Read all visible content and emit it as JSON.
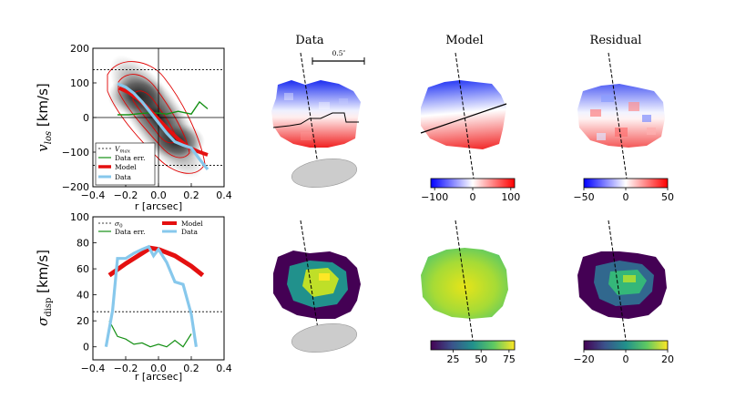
{
  "titles": {
    "data": "Data",
    "model": "Model",
    "residual": "Residual"
  },
  "scale_bar": "0.5″",
  "chart_data": [
    {
      "type": "line",
      "xlabel": "r [arcsec]",
      "ylabel_main": "v",
      "ylabel_sub": "los",
      "ylabel_unit": " [km/s]",
      "xlim": [
        -0.4,
        0.4
      ],
      "ylim": [
        -200,
        200
      ],
      "xticks": [
        "−0.4",
        "−0.2",
        "0.0",
        "0.2",
        "0.4"
      ],
      "yticks": [
        "−200",
        "−100",
        "0",
        "100",
        "200"
      ],
      "vmax": 138,
      "legend": {
        "vmax": "V",
        "vmax_sub": "max",
        "err": "Data err.",
        "model": "Model",
        "data": "Data"
      },
      "series": [
        {
          "name": "Model",
          "x": [
            -0.24,
            -0.18,
            -0.12,
            -0.06,
            0.0,
            0.06,
            0.12,
            0.18,
            0.24,
            0.3
          ],
          "y": [
            85,
            72,
            52,
            25,
            -5,
            -35,
            -62,
            -85,
            -98,
            -108
          ]
        },
        {
          "name": "Data",
          "x": [
            -0.25,
            -0.2,
            -0.15,
            -0.1,
            -0.05,
            0.0,
            0.05,
            0.1,
            0.15,
            0.2,
            0.25,
            0.3
          ],
          "y": [
            98,
            88,
            70,
            45,
            15,
            -15,
            -45,
            -70,
            -80,
            -88,
            -120,
            -150
          ]
        },
        {
          "name": "Data err.",
          "x": [
            -0.25,
            -0.18,
            -0.1,
            -0.03,
            0.05,
            0.12,
            0.2,
            0.25,
            0.3
          ],
          "y": [
            8,
            8,
            12,
            14,
            10,
            18,
            10,
            45,
            25
          ]
        }
      ]
    },
    {
      "type": "line",
      "xlabel": "r [arcsec]",
      "ylabel_main": "σ",
      "ylabel_sub": "disp",
      "ylabel_unit": " [km/s]",
      "xlim": [
        -0.4,
        0.4
      ],
      "ylim": [
        -10,
        100
      ],
      "xticks": [
        "−0.4",
        "−0.2",
        "0.0",
        "0.2",
        "0.4"
      ],
      "yticks": [
        "0",
        "20",
        "40",
        "60",
        "80",
        "100"
      ],
      "sigma0": 27,
      "legend": {
        "sigma0": "σ",
        "sigma0_sub": "0",
        "err": "Data err.",
        "model": "Model",
        "data": "Data"
      },
      "series": [
        {
          "name": "Model",
          "x": [
            -0.3,
            -0.2,
            -0.1,
            -0.05,
            0.0,
            0.1,
            0.2,
            0.27
          ],
          "y": [
            55,
            64,
            72,
            76,
            75,
            70,
            62,
            55
          ]
        },
        {
          "name": "Data",
          "x": [
            -0.32,
            -0.28,
            -0.25,
            -0.2,
            -0.15,
            -0.1,
            -0.06,
            -0.03,
            0.0,
            0.05,
            0.1,
            0.15,
            0.2,
            0.23
          ],
          "y": [
            0,
            28,
            68,
            68,
            72,
            75,
            77,
            70,
            75,
            65,
            50,
            48,
            25,
            0
          ]
        },
        {
          "name": "Data err.",
          "x": [
            -0.3,
            -0.25,
            -0.2,
            -0.15,
            -0.1,
            -0.05,
            0.0,
            0.05,
            0.1,
            0.15,
            0.2
          ],
          "y": [
            20,
            8,
            6,
            2,
            3,
            0,
            2,
            0,
            5,
            0,
            10
          ]
        }
      ]
    }
  ],
  "colorbars": [
    {
      "ticks": [
        "−100",
        "0",
        "100"
      ],
      "min": -110,
      "max": 110
    },
    {
      "ticks": [
        "−50",
        "0",
        "50"
      ],
      "min": -50,
      "max": 50
    },
    {
      "ticks": [
        "25",
        "50",
        "75"
      ],
      "min": 5,
      "max": 80
    },
    {
      "ticks": [
        "−20",
        "0",
        "20"
      ],
      "min": -20,
      "max": 20
    }
  ]
}
